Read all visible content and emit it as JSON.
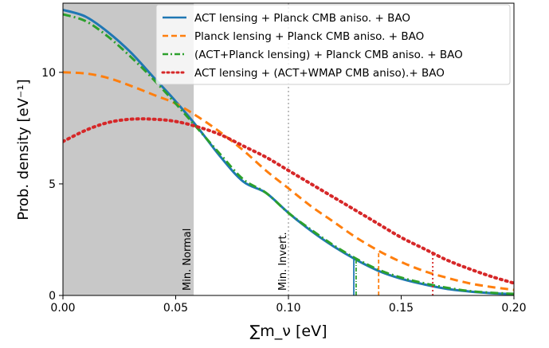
{
  "chart_data": {
    "type": "line",
    "title": "",
    "xlabel": "∑m_ν [eV]",
    "ylabel": "Prob. density [eV⁻¹]",
    "xlim": [
      0,
      0.2
    ],
    "ylim": [
      0,
      13.1
    ],
    "xticks": [
      {
        "value": 0.0,
        "label": "0.00"
      },
      {
        "value": 0.05,
        "label": "0.05"
      },
      {
        "value": 0.1,
        "label": "0.10"
      },
      {
        "value": 0.15,
        "label": "0.15"
      },
      {
        "value": 0.2,
        "label": "0.20"
      }
    ],
    "yticks": [
      {
        "value": 0,
        "label": "0"
      },
      {
        "value": 5,
        "label": "5"
      },
      {
        "value": 10,
        "label": "10"
      }
    ],
    "grid": false,
    "legend_position": "top-right",
    "shaded_region": {
      "x0": 0,
      "x1": 0.058,
      "color": "#c8c8c8",
      "label": "Min. Normal"
    },
    "reference_lines": [
      {
        "x": 0.1,
        "label": "Min. Invert.",
        "color": "#c0c0c0",
        "style": "dotted"
      }
    ],
    "series": [
      {
        "name": "ACT lensing + Planck CMB aniso. + BAO",
        "color": "#1f77b4",
        "style": "solid",
        "x": [
          0,
          0.01,
          0.02,
          0.03,
          0.04,
          0.05,
          0.06,
          0.07,
          0.08,
          0.09,
          0.1,
          0.11,
          0.12,
          0.13,
          0.14,
          0.15,
          0.16,
          0.17,
          0.18,
          0.19,
          0.2
        ],
        "y": [
          12.8,
          12.5,
          11.8,
          10.9,
          9.8,
          8.7,
          7.5,
          6.2,
          5.1,
          4.6,
          3.7,
          2.9,
          2.2,
          1.6,
          1.1,
          0.75,
          0.5,
          0.3,
          0.18,
          0.1,
          0.06
        ],
        "limit_x": 0.129
      },
      {
        "name": "Planck lensing + Planck CMB aniso. + BAO",
        "color": "#ff7f0e",
        "style": "dashed",
        "x": [
          0,
          0.01,
          0.02,
          0.03,
          0.04,
          0.05,
          0.06,
          0.07,
          0.08,
          0.09,
          0.1,
          0.11,
          0.12,
          0.13,
          0.14,
          0.15,
          0.16,
          0.17,
          0.18,
          0.19,
          0.2
        ],
        "y": [
          10.0,
          9.95,
          9.75,
          9.4,
          9.0,
          8.6,
          8.0,
          7.3,
          6.5,
          5.6,
          4.8,
          4.0,
          3.3,
          2.6,
          2.0,
          1.5,
          1.1,
          0.8,
          0.55,
          0.38,
          0.25
        ],
        "limit_x": 0.14
      },
      {
        "name": "(ACT+Planck lensing) + Planck CMB aniso. + BAO",
        "color": "#2ca02c",
        "style": "dashdot",
        "x": [
          0,
          0.01,
          0.02,
          0.03,
          0.04,
          0.05,
          0.06,
          0.07,
          0.08,
          0.09,
          0.1,
          0.11,
          0.12,
          0.13,
          0.14,
          0.15,
          0.16,
          0.17,
          0.18,
          0.19,
          0.2
        ],
        "y": [
          12.6,
          12.3,
          11.6,
          10.7,
          9.7,
          8.6,
          7.45,
          6.3,
          5.2,
          4.6,
          3.7,
          2.95,
          2.25,
          1.65,
          1.15,
          0.8,
          0.55,
          0.35,
          0.2,
          0.12,
          0.07
        ],
        "limit_x": 0.13
      },
      {
        "name": "ACT lensing + (ACT+WMAP CMB  aniso).+  BAO",
        "color": "#d62728",
        "style": "dotted",
        "x": [
          0,
          0.01,
          0.02,
          0.03,
          0.04,
          0.05,
          0.06,
          0.07,
          0.08,
          0.09,
          0.1,
          0.11,
          0.12,
          0.13,
          0.14,
          0.15,
          0.16,
          0.17,
          0.18,
          0.19,
          0.2
        ],
        "y": [
          6.9,
          7.4,
          7.75,
          7.9,
          7.9,
          7.8,
          7.55,
          7.2,
          6.7,
          6.2,
          5.6,
          5.0,
          4.4,
          3.8,
          3.2,
          2.6,
          2.1,
          1.6,
          1.2,
          0.85,
          0.55
        ],
        "limit_x": 0.164
      }
    ]
  }
}
